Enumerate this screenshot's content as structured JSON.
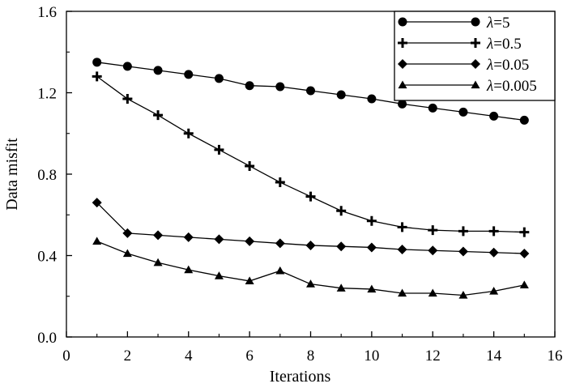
{
  "chart_data": {
    "type": "line",
    "xlabel": "Iterations",
    "ylabel": "Data misfit",
    "xlim": [
      0,
      16
    ],
    "ylim": [
      0.0,
      1.6
    ],
    "xticks": [
      "0",
      "2",
      "4",
      "6",
      "8",
      "10",
      "12",
      "14",
      "16"
    ],
    "yticks": [
      "0.0",
      "0.4",
      "0.8",
      "1.2",
      "1.6"
    ],
    "grid": false,
    "legend_position": "top-right",
    "x": [
      1,
      2,
      3,
      4,
      5,
      6,
      7,
      8,
      9,
      10,
      11,
      12,
      13,
      14,
      15
    ],
    "series": [
      {
        "name": "λ=5",
        "legend_symbol": "λ",
        "legend_value": "=5",
        "marker": "circle",
        "values": [
          1.35,
          1.33,
          1.31,
          1.29,
          1.27,
          1.235,
          1.23,
          1.21,
          1.19,
          1.17,
          1.145,
          1.125,
          1.105,
          1.085,
          1.065
        ]
      },
      {
        "name": "λ=0.5",
        "legend_symbol": "λ",
        "legend_value": "=0.5",
        "marker": "plus",
        "values": [
          1.28,
          1.17,
          1.09,
          1.0,
          0.92,
          0.84,
          0.76,
          0.69,
          0.62,
          0.57,
          0.54,
          0.525,
          0.52,
          0.52,
          0.515
        ]
      },
      {
        "name": "λ=0.05",
        "legend_symbol": "λ",
        "legend_value": "=0.05",
        "marker": "diamond",
        "values": [
          0.66,
          0.51,
          0.5,
          0.49,
          0.48,
          0.47,
          0.46,
          0.45,
          0.445,
          0.44,
          0.43,
          0.425,
          0.42,
          0.415,
          0.41
        ]
      },
      {
        "name": "λ=0.005",
        "legend_symbol": "λ",
        "legend_value": "=0.005",
        "marker": "triangle",
        "values": [
          0.47,
          0.41,
          0.365,
          0.33,
          0.3,
          0.275,
          0.325,
          0.26,
          0.24,
          0.235,
          0.215,
          0.215,
          0.205,
          0.225,
          0.255
        ]
      }
    ]
  }
}
